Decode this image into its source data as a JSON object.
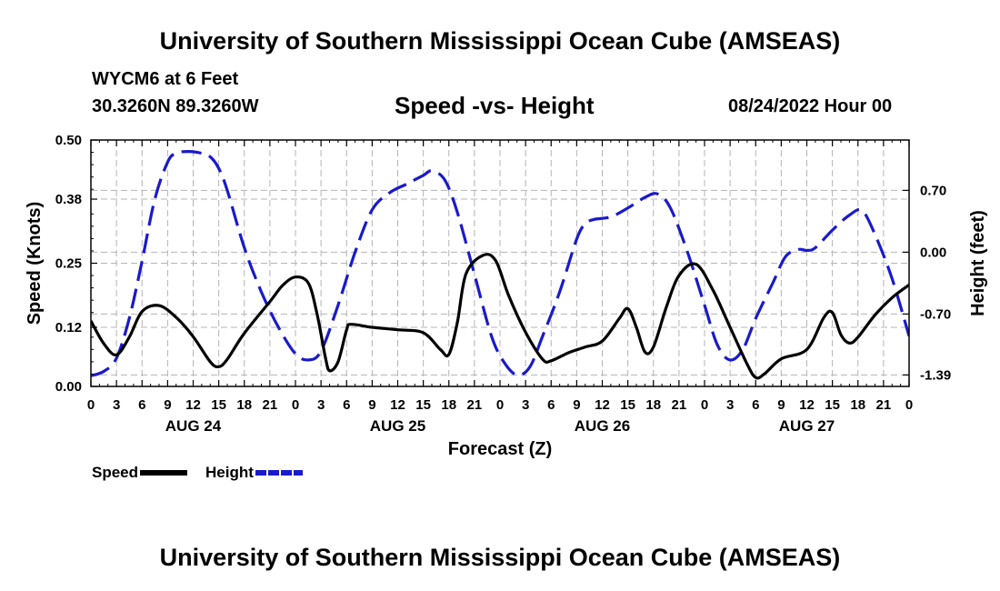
{
  "header": {
    "title": "University of Southern Mississippi Ocean Cube (AMSEAS)",
    "station": "WYCM6 at 6 Feet",
    "coordinates": "30.3260N  89.3260W",
    "date": "08/24/2022 Hour 00"
  },
  "footer": {
    "title": "University of Southern Mississippi Ocean Cube (AMSEAS)"
  },
  "legend": {
    "speed_label": "Speed",
    "height_label": "Height"
  },
  "colors": {
    "speed": "#000000",
    "height": "#1a1acc",
    "grid": "#b4b4b4"
  },
  "chart_data": {
    "type": "line",
    "title": "Speed -vs- Height",
    "xlabel": "Forecast (Z)",
    "ylabel": "Speed (Knots)",
    "y2label": "Height (feet)",
    "x_range_hours": [
      0,
      96
    ],
    "x_tick_step_hours": 3,
    "x_tick_labels": [
      "0",
      "3",
      "6",
      "9",
      "12",
      "15",
      "18",
      "21",
      "0",
      "3",
      "6",
      "9",
      "12",
      "15",
      "18",
      "21",
      "0",
      "3",
      "6",
      "9",
      "12",
      "15",
      "18",
      "21",
      "0",
      "3",
      "6",
      "9",
      "12",
      "15",
      "18",
      "21",
      "0"
    ],
    "day_labels": [
      {
        "label": "AUG 24",
        "hour": 12
      },
      {
        "label": "AUG 25",
        "hour": 36
      },
      {
        "label": "AUG 26",
        "hour": 60
      },
      {
        "label": "AUG 27",
        "hour": 84
      }
    ],
    "ylim": [
      0,
      0.5
    ],
    "y_ticks": [
      0.0,
      0.12,
      0.25,
      0.38,
      0.5
    ],
    "y_tick_labels": [
      "0.00",
      "0.12",
      "0.25",
      "0.38",
      "0.50"
    ],
    "y2lim": [
      -1.52,
      1.27
    ],
    "y2_ticks": [
      -1.39,
      -0.7,
      0.0,
      0.7
    ],
    "y2_tick_labels": [
      "-1.39",
      "-0.70",
      "0.00",
      "0.70"
    ],
    "series": [
      {
        "name": "Speed",
        "axis": "left",
        "style": "solid",
        "points": [
          [
            0,
            0.133
          ],
          [
            1.5,
            0.087
          ],
          [
            3,
            0.064
          ],
          [
            4.5,
            0.1
          ],
          [
            6,
            0.152
          ],
          [
            8,
            0.164
          ],
          [
            10,
            0.14
          ],
          [
            12,
            0.101
          ],
          [
            14,
            0.05
          ],
          [
            15,
            0.04
          ],
          [
            16,
            0.055
          ],
          [
            18,
            0.108
          ],
          [
            21,
            0.172
          ],
          [
            22.5,
            0.205
          ],
          [
            24,
            0.222
          ],
          [
            25.5,
            0.21
          ],
          [
            26.5,
            0.15
          ],
          [
            27.5,
            0.06
          ],
          [
            28,
            0.032
          ],
          [
            29,
            0.05
          ],
          [
            30,
            0.115
          ],
          [
            30.5,
            0.126
          ],
          [
            33,
            0.12
          ],
          [
            36,
            0.115
          ],
          [
            39,
            0.109
          ],
          [
            41,
            0.075
          ],
          [
            42,
            0.065
          ],
          [
            43,
            0.13
          ],
          [
            44,
            0.228
          ],
          [
            46,
            0.266
          ],
          [
            47.5,
            0.255
          ],
          [
            49,
            0.185
          ],
          [
            51,
            0.11
          ],
          [
            53,
            0.055
          ],
          [
            54,
            0.052
          ],
          [
            56,
            0.068
          ],
          [
            58,
            0.08
          ],
          [
            60,
            0.092
          ],
          [
            62,
            0.138
          ],
          [
            63,
            0.158
          ],
          [
            64,
            0.12
          ],
          [
            65,
            0.07
          ],
          [
            66,
            0.08
          ],
          [
            67.5,
            0.16
          ],
          [
            69,
            0.225
          ],
          [
            71,
            0.248
          ],
          [
            73,
            0.195
          ],
          [
            75,
            0.12
          ],
          [
            77,
            0.045
          ],
          [
            78,
            0.018
          ],
          [
            79,
            0.025
          ],
          [
            81,
            0.056
          ],
          [
            84,
            0.075
          ],
          [
            86,
            0.14
          ],
          [
            87,
            0.15
          ],
          [
            88,
            0.105
          ],
          [
            89,
            0.088
          ],
          [
            90,
            0.1
          ],
          [
            92,
            0.145
          ],
          [
            94,
            0.18
          ],
          [
            96,
            0.206
          ]
        ]
      },
      {
        "name": "Height",
        "axis": "right",
        "style": "dashed",
        "points": [
          [
            0,
            -1.4
          ],
          [
            1.5,
            -1.35
          ],
          [
            3,
            -1.2
          ],
          [
            4.5,
            -0.75
          ],
          [
            6,
            -0.1
          ],
          [
            7.5,
            0.6
          ],
          [
            9,
            1.02
          ],
          [
            10,
            1.12
          ],
          [
            11.5,
            1.14
          ],
          [
            13,
            1.12
          ],
          [
            14,
            1.08
          ],
          [
            15,
            0.95
          ],
          [
            16,
            0.7
          ],
          [
            18,
            0.05
          ],
          [
            20,
            -0.45
          ],
          [
            22,
            -0.85
          ],
          [
            24,
            -1.15
          ],
          [
            25.5,
            -1.22
          ],
          [
            27,
            -1.12
          ],
          [
            29,
            -0.6
          ],
          [
            31,
            0.0
          ],
          [
            33,
            0.48
          ],
          [
            35,
            0.67
          ],
          [
            37,
            0.77
          ],
          [
            39,
            0.87
          ],
          [
            40,
            0.92
          ],
          [
            41.5,
            0.82
          ],
          [
            43,
            0.45
          ],
          [
            45,
            -0.25
          ],
          [
            47,
            -0.95
          ],
          [
            48.5,
            -1.25
          ],
          [
            50,
            -1.39
          ],
          [
            51.5,
            -1.3
          ],
          [
            53,
            -0.95
          ],
          [
            55,
            -0.45
          ],
          [
            57,
            0.15
          ],
          [
            58,
            0.32
          ],
          [
            59,
            0.37
          ],
          [
            61,
            0.4
          ],
          [
            63,
            0.5
          ],
          [
            65,
            0.62
          ],
          [
            66.5,
            0.66
          ],
          [
            68,
            0.5
          ],
          [
            70,
            0.0
          ],
          [
            72,
            -0.6
          ],
          [
            73.5,
            -1.05
          ],
          [
            75,
            -1.22
          ],
          [
            76.5,
            -1.1
          ],
          [
            78,
            -0.75
          ],
          [
            80,
            -0.35
          ],
          [
            81.5,
            -0.05
          ],
          [
            83,
            0.03
          ],
          [
            84,
            0.02
          ],
          [
            85,
            0.05
          ],
          [
            87,
            0.25
          ],
          [
            89,
            0.42
          ],
          [
            90.5,
            0.47
          ],
          [
            92,
            0.2
          ],
          [
            94,
            -0.3
          ],
          [
            96,
            -0.95
          ]
        ]
      }
    ]
  }
}
